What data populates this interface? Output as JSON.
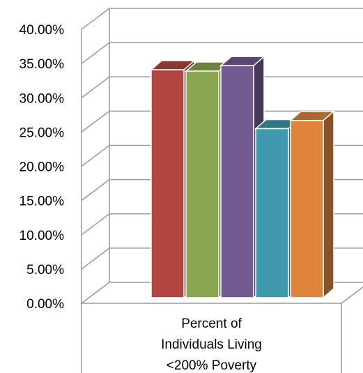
{
  "chart_data": {
    "type": "bar",
    "style": "3d-clustered-column",
    "categories": [
      "Percent of Individuals Living <200% Poverty"
    ],
    "category_label_lines": [
      "Percent of",
      "Individuals Living",
      "<200% Poverty"
    ],
    "series": [
      {
        "values": [
          0.345
        ],
        "color": "#B0463F"
      },
      {
        "values": [
          0.343
        ],
        "color": "#8BA650"
      },
      {
        "values": [
          0.351
        ],
        "color": "#735A91"
      },
      {
        "values": [
          0.259
        ],
        "color": "#4099AE"
      },
      {
        "values": [
          0.271
        ],
        "color": "#DE853A"
      }
    ],
    "ylim": [
      0,
      0.4
    ],
    "y_ticks": [
      0,
      0.05,
      0.1,
      0.15,
      0.2,
      0.25,
      0.3,
      0.35,
      0.4
    ],
    "y_tick_labels": [
      "0.00%",
      "5.00%",
      "10.00%",
      "15.00%",
      "20.00%",
      "25.00%",
      "30.00%",
      "35.00%",
      "40.00%"
    ],
    "grid": true,
    "legend": false,
    "title": "",
    "xlabel": "",
    "ylabel": ""
  }
}
